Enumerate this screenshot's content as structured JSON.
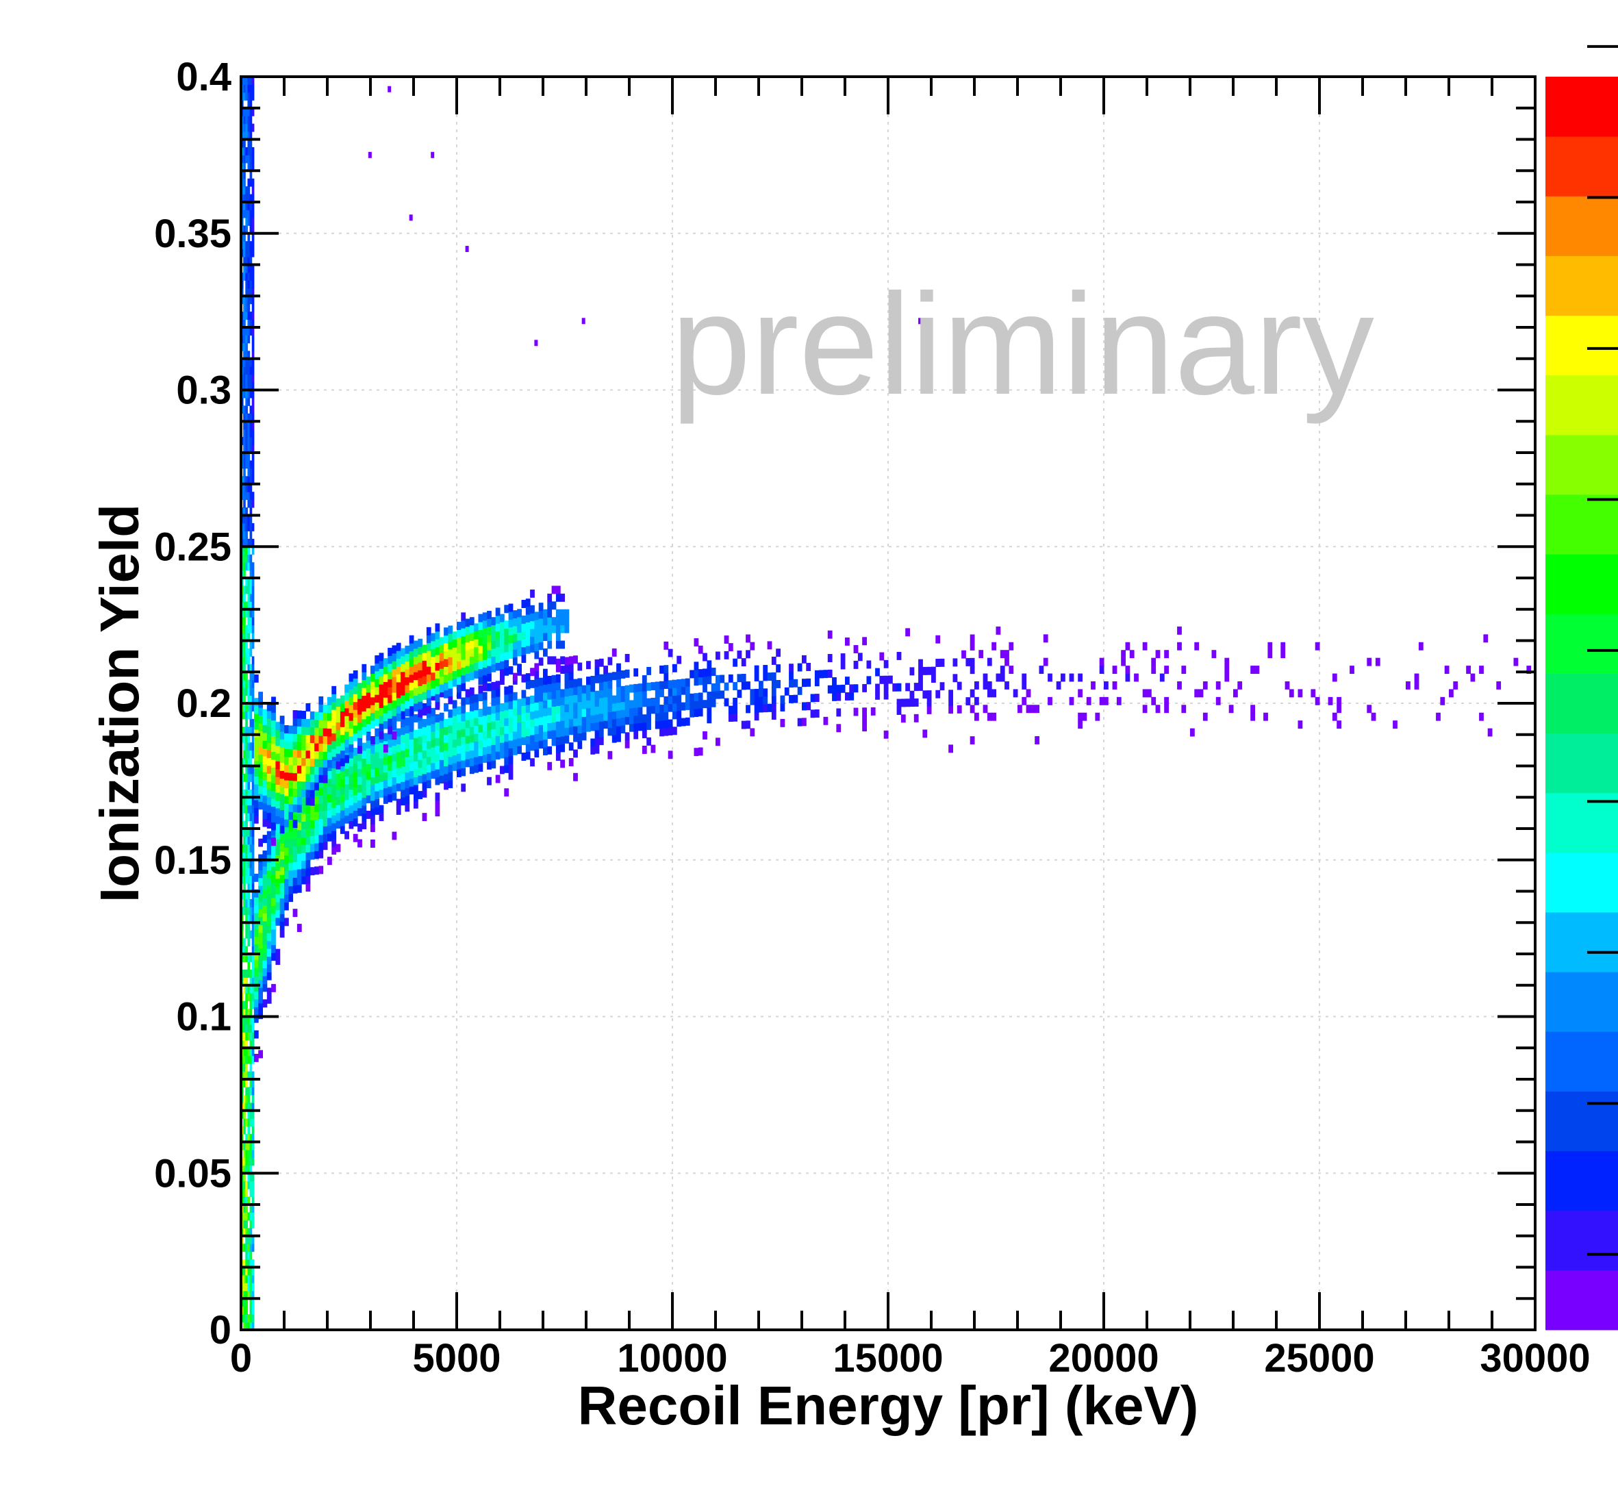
{
  "chart_data": {
    "type": "heatmap",
    "title": "",
    "xlabel": "Recoil Energy [pr] (keV)",
    "ylabel": "Ionization Yield",
    "xlim": [
      0,
      30000
    ],
    "ylim": [
      0,
      0.4
    ],
    "x_ticks": [
      0,
      5000,
      10000,
      15000,
      20000,
      25000,
      30000
    ],
    "x_tick_labels": [
      "0",
      "5000",
      "10000",
      "15000",
      "20000",
      "25000",
      "30000"
    ],
    "y_ticks": [
      0,
      0.05,
      0.1,
      0.15,
      0.2,
      0.25,
      0.3,
      0.35,
      0.4
    ],
    "y_tick_labels": [
      "0",
      "0.05",
      "0.1",
      "0.15",
      "0.2",
      "0.25",
      "0.3",
      "0.35",
      "0.4"
    ],
    "grid": true,
    "annotation": "preliminary",
    "colorbar": {
      "levels": 20,
      "colors": [
        "#7700ff",
        "#3311ff",
        "#0022ff",
        "#0044ee",
        "#0066ff",
        "#0088ff",
        "#00bbff",
        "#00ffff",
        "#00ffcc",
        "#00ee99",
        "#00ee66",
        "#00ff33",
        "#00ff00",
        "#44ff00",
        "#88ff00",
        "#ccff00",
        "#ffff00",
        "#ffbb00",
        "#ff8800",
        "#ff3300",
        "#ff0000"
      ],
      "tick_labels_visible": false
    },
    "bands": [
      {
        "description_id": "upper-band",
        "x": [
          300,
          1000,
          2000,
          3000,
          4000,
          5000,
          6000,
          7000
        ],
        "y": [
          0.185,
          0.175,
          0.19,
          0.2,
          0.208,
          0.214,
          0.219,
          0.223
        ],
        "relative_intensity": [
          0.7,
          0.85,
          0.9,
          0.95,
          1.0,
          0.8,
          0.5,
          0.3
        ]
      },
      {
        "description_id": "lower-band",
        "x": [
          300,
          1000,
          2000,
          3000,
          5000,
          7000,
          9000,
          11000,
          14000,
          17000,
          20000,
          24000,
          28000,
          30000
        ],
        "y": [
          0.12,
          0.155,
          0.17,
          0.178,
          0.188,
          0.195,
          0.2,
          0.203,
          0.205,
          0.206,
          0.206,
          0.206,
          0.206,
          0.206
        ],
        "relative_intensity": [
          0.6,
          0.6,
          0.55,
          0.5,
          0.45,
          0.35,
          0.25,
          0.18,
          0.1,
          0.07,
          0.05,
          0.03,
          0.02,
          0.01
        ]
      },
      {
        "description_id": "low-energy-column",
        "x": [
          0,
          100,
          200,
          300
        ],
        "y_range": [
          0,
          0.4
        ],
        "relative_intensity": [
          0.5,
          0.45,
          0.3,
          0.15
        ]
      }
    ],
    "outliers": [
      [
        3400,
        0.397
      ],
      [
        2950,
        0.376
      ],
      [
        4400,
        0.376
      ],
      [
        3900,
        0.356
      ],
      [
        5200,
        0.346
      ],
      [
        7900,
        0.323
      ],
      [
        6800,
        0.316
      ],
      [
        15700,
        0.323
      ]
    ]
  }
}
